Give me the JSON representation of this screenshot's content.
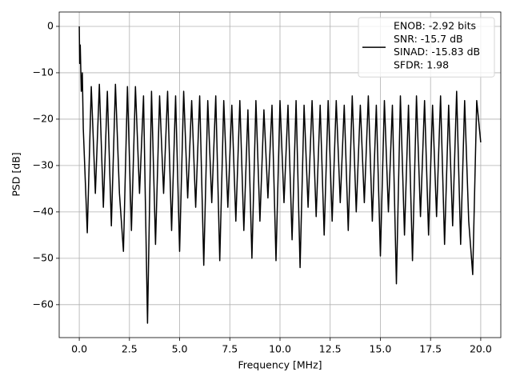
{
  "chart_data": {
    "type": "line",
    "xlabel": "Frequency [MHz]",
    "ylabel": "PSD [dB]",
    "x": [
      0,
      0.02,
      0.05,
      0.1,
      0.15,
      0.2,
      0.4,
      0.6,
      0.8,
      1.0,
      1.2,
      1.4,
      1.6,
      1.8,
      2.0,
      2.2,
      2.4,
      2.6,
      2.8,
      3.0,
      3.2,
      3.4,
      3.6,
      3.8,
      4.0,
      4.2,
      4.4,
      4.6,
      4.8,
      5.0,
      5.2,
      5.4,
      5.6,
      5.8,
      6.0,
      6.2,
      6.4,
      6.6,
      6.8,
      7.0,
      7.2,
      7.4,
      7.6,
      7.8,
      8.0,
      8.2,
      8.4,
      8.6,
      8.8,
      9.0,
      9.2,
      9.4,
      9.6,
      9.8,
      10.0,
      10.2,
      10.4,
      10.6,
      10.8,
      11.0,
      11.2,
      11.4,
      11.6,
      11.8,
      12.0,
      12.2,
      12.4,
      12.6,
      12.8,
      13.0,
      13.2,
      13.4,
      13.6,
      13.8,
      14.0,
      14.2,
      14.4,
      14.6,
      14.8,
      15.0,
      15.2,
      15.4,
      15.6,
      15.8,
      16.0,
      16.2,
      16.4,
      16.6,
      16.8,
      17.0,
      17.2,
      17.4,
      17.6,
      17.8,
      18.0,
      18.2,
      18.4,
      18.6,
      18.8,
      19.0,
      19.2,
      19.4,
      19.6,
      19.8,
      20.0
    ],
    "series": [
      {
        "name": [
          "ENOB: -2.92 bits",
          "SNR: -15.7 dB",
          "SINAD: -15.83 dB",
          "SFDR: 1.98"
        ],
        "color": "#000000",
        "values": [
          0,
          -8,
          -4,
          -14,
          -10,
          -22,
          -44.5,
          -13,
          -36,
          -12.5,
          -39,
          -14,
          -43,
          -12.5,
          -36,
          -48.5,
          -13,
          -44,
          -13,
          -36,
          -15,
          -64,
          -14,
          -47,
          -15,
          -36,
          -14,
          -44,
          -15,
          -48.5,
          -14,
          -37,
          -16,
          -39,
          -15,
          -51.5,
          -16,
          -38,
          -15,
          -50.5,
          -16,
          -39,
          -17,
          -42,
          -16,
          -44,
          -18,
          -50,
          -16,
          -42,
          -18,
          -37,
          -17,
          -50.5,
          -16,
          -38,
          -17,
          -46,
          -16,
          -52,
          -17,
          -39,
          -16,
          -41,
          -17,
          -45,
          -16,
          -42,
          -16,
          -38,
          -17,
          -44,
          -15,
          -40,
          -17,
          -38,
          -15,
          -42,
          -17,
          -49.5,
          -16,
          -40,
          -17,
          -55.5,
          -15,
          -45,
          -17,
          -50.5,
          -15,
          -41,
          -16,
          -45,
          -17,
          -41,
          -15,
          -47,
          -17,
          -43,
          -14,
          -47,
          -16,
          -42,
          -53.5,
          -16,
          -25
        ]
      }
    ],
    "xlim": [
      -1,
      21
    ],
    "ylim": [
      -67.1,
      3.1
    ],
    "xticks": [
      {
        "value": 0,
        "label": "0.0"
      },
      {
        "value": 2.5,
        "label": "2.5"
      },
      {
        "value": 5,
        "label": "5.0"
      },
      {
        "value": 7.5,
        "label": "7.5"
      },
      {
        "value": 10,
        "label": "10.0"
      },
      {
        "value": 12.5,
        "label": "12.5"
      },
      {
        "value": 15,
        "label": "15.0"
      },
      {
        "value": 17.5,
        "label": "17.5"
      },
      {
        "value": 20,
        "label": "20.0"
      }
    ],
    "yticks": [
      {
        "value": -60,
        "label": "−60"
      },
      {
        "value": -50,
        "label": "−50"
      },
      {
        "value": -40,
        "label": "−40"
      },
      {
        "value": -30,
        "label": "−30"
      },
      {
        "value": -20,
        "label": "−20"
      },
      {
        "value": -10,
        "label": "−10"
      },
      0
    ],
    "grid": true,
    "legend": "upper right"
  }
}
